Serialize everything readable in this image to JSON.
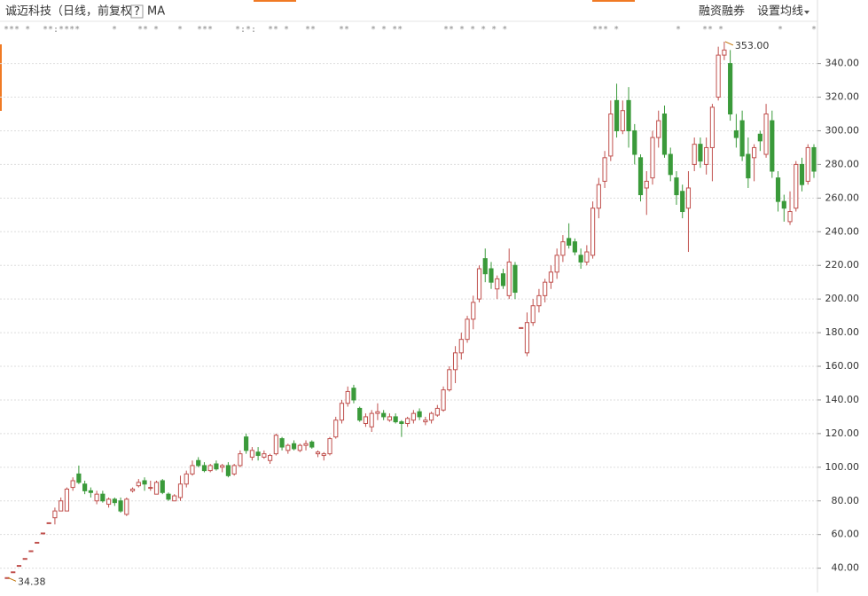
{
  "header": {
    "title": "诚迈科技",
    "mode": "（日线，前复权）",
    "help": "?",
    "indicator": "MA",
    "margin": "融资融券",
    "settings": "设置均线"
  },
  "markers": [
    "*** *",
    "**:****",
    "*",
    "** *",
    "*",
    "***",
    "*:*:",
    "** *",
    "**",
    "**",
    "* * **",
    "** * * * * *",
    "*** *",
    "** *",
    "*",
    "*",
    "*"
  ],
  "chart_data": {
    "type": "candlestick",
    "ylim": [
      34,
      353.5
    ],
    "yticks": [
      {
        "value": 40,
        "label": "40.00"
      },
      {
        "value": 60,
        "label": "60.00"
      },
      {
        "value": 80,
        "label": "80.00"
      },
      {
        "value": 100,
        "label": "100.00"
      },
      {
        "value": 120,
        "label": "120.00"
      },
      {
        "value": 140,
        "label": "140.00"
      },
      {
        "value": 160,
        "label": "160.00"
      },
      {
        "value": 180,
        "label": "180.00"
      },
      {
        "value": 200,
        "label": "200.00"
      },
      {
        "value": 220,
        "label": "220.00"
      },
      {
        "value": 240,
        "label": "240.00"
      },
      {
        "value": 260,
        "label": "260.00"
      },
      {
        "value": 280,
        "label": "280.00"
      },
      {
        "value": 300,
        "label": "300.00"
      },
      {
        "value": 320,
        "label": "320.00"
      },
      {
        "value": 340,
        "label": "340.00"
      }
    ],
    "grid": true,
    "up_color": "#c0504d",
    "down_color": "#3a9a3a",
    "annotations": [
      {
        "index": 120,
        "value": 353,
        "label": "353.00"
      },
      {
        "index": 0,
        "value": 34.38,
        "label": "34.38"
      }
    ],
    "candles": [
      [
        34.38,
        34.38,
        34.38,
        34.38
      ],
      [
        37.82,
        37.82,
        37.82,
        37.82
      ],
      [
        41.6,
        41.6,
        41.6,
        41.6
      ],
      [
        45.76,
        45.76,
        45.76,
        45.76
      ],
      [
        50.34,
        50.34,
        50.34,
        50.34
      ],
      [
        55.37,
        55.37,
        55.37,
        55.37
      ],
      [
        60.91,
        60.91,
        60.91,
        60.91
      ],
      [
        67,
        67,
        67,
        67
      ],
      [
        70,
        76,
        66,
        74
      ],
      [
        74,
        82,
        74,
        80
      ],
      [
        74,
        88,
        74,
        87
      ],
      [
        88,
        94,
        86,
        92
      ],
      [
        96,
        101,
        90,
        91
      ],
      [
        90,
        92,
        84,
        86
      ],
      [
        86,
        88,
        82,
        85
      ],
      [
        80,
        86,
        78,
        84
      ],
      [
        84,
        86,
        79,
        80
      ],
      [
        78,
        82,
        76,
        81
      ],
      [
        81,
        82,
        77,
        79
      ],
      [
        80,
        82,
        73,
        74
      ],
      [
        72,
        82,
        71,
        81
      ],
      [
        86,
        88,
        85,
        87
      ],
      [
        89,
        93,
        88,
        91
      ],
      [
        92,
        94,
        86,
        90
      ],
      [
        88,
        92,
        86,
        88
      ],
      [
        84,
        92,
        84,
        91
      ],
      [
        92,
        93,
        84,
        85
      ],
      [
        84,
        85,
        80,
        81
      ],
      [
        80,
        84,
        80,
        83
      ],
      [
        82,
        95,
        80,
        90
      ],
      [
        90,
        98,
        88,
        96
      ],
      [
        96,
        104,
        95,
        101
      ],
      [
        104,
        106,
        100,
        101
      ],
      [
        101,
        103,
        97,
        98
      ],
      [
        98,
        102,
        97,
        101
      ],
      [
        102,
        104,
        98,
        99
      ],
      [
        100,
        102,
        97,
        101
      ],
      [
        101,
        103,
        94,
        95
      ],
      [
        96,
        102,
        95,
        101
      ],
      [
        101,
        110,
        100,
        108
      ],
      [
        118,
        120,
        108,
        110
      ],
      [
        106,
        112,
        104,
        110
      ],
      [
        109,
        112,
        104,
        107
      ],
      [
        106,
        110,
        105,
        108
      ],
      [
        104,
        108,
        102,
        107
      ],
      [
        108,
        120,
        107,
        119
      ],
      [
        117,
        118,
        110,
        112
      ],
      [
        110,
        114,
        108,
        113
      ],
      [
        114,
        116,
        110,
        111
      ],
      [
        110,
        114,
        109,
        113
      ],
      [
        113,
        116,
        110,
        114
      ],
      [
        115,
        116,
        111,
        112
      ],
      [
        108,
        110,
        106,
        109
      ],
      [
        107,
        109,
        104,
        108
      ],
      [
        108,
        118,
        107,
        117
      ],
      [
        118,
        130,
        117,
        128
      ],
      [
        128,
        140,
        126,
        138
      ],
      [
        138,
        148,
        136,
        145
      ],
      [
        147,
        149,
        138,
        140
      ],
      [
        135,
        136,
        127,
        128
      ],
      [
        126,
        132,
        124,
        130
      ],
      [
        124,
        134,
        121,
        132
      ],
      [
        132,
        138,
        128,
        133
      ],
      [
        132,
        134,
        128,
        130
      ],
      [
        128,
        132,
        127,
        130
      ],
      [
        130,
        132,
        126,
        127
      ],
      [
        127,
        128,
        118,
        126
      ],
      [
        126,
        130,
        124,
        129
      ],
      [
        128,
        134,
        126,
        132
      ],
      [
        133,
        135,
        128,
        130
      ],
      [
        127,
        130,
        125,
        128
      ],
      [
        128,
        133,
        126,
        132
      ],
      [
        131,
        137,
        130,
        135
      ],
      [
        134,
        148,
        133,
        146
      ],
      [
        146,
        160,
        145,
        158
      ],
      [
        158,
        172,
        150,
        168
      ],
      [
        168,
        180,
        164,
        176
      ],
      [
        176,
        190,
        174,
        188
      ],
      [
        188,
        202,
        182,
        198
      ],
      [
        200,
        220,
        198,
        218
      ],
      [
        224,
        230,
        210,
        215
      ],
      [
        218,
        222,
        206,
        210
      ],
      [
        206,
        214,
        200,
        212
      ],
      [
        215,
        218,
        206,
        208
      ],
      [
        202,
        230,
        200,
        222
      ],
      [
        220,
        222,
        200,
        204
      ],
      [
        183,
        183,
        183,
        183
      ],
      [
        168,
        192,
        166,
        186
      ],
      [
        186,
        200,
        184,
        196
      ],
      [
        196,
        206,
        192,
        202
      ],
      [
        202,
        212,
        198,
        210
      ],
      [
        210,
        220,
        206,
        216
      ],
      [
        216,
        230,
        212,
        226
      ],
      [
        226,
        238,
        222,
        234
      ],
      [
        236,
        245,
        230,
        232
      ],
      [
        234,
        236,
        226,
        228
      ],
      [
        226,
        230,
        218,
        222
      ],
      [
        222,
        232,
        220,
        228
      ],
      [
        226,
        258,
        224,
        254
      ],
      [
        254,
        272,
        248,
        268
      ],
      [
        270,
        288,
        266,
        284
      ],
      [
        285,
        318,
        282,
        310
      ],
      [
        318,
        328,
        296,
        300
      ],
      [
        300,
        318,
        298,
        312
      ],
      [
        318,
        326,
        290,
        300
      ],
      [
        300,
        304,
        280,
        286
      ],
      [
        284,
        286,
        258,
        262
      ],
      [
        266,
        276,
        250,
        270
      ],
      [
        272,
        300,
        268,
        296
      ],
      [
        296,
        312,
        290,
        306
      ],
      [
        310,
        315,
        284,
        286
      ],
      [
        286,
        290,
        270,
        274
      ],
      [
        272,
        276,
        256,
        262
      ],
      [
        264,
        268,
        248,
        252
      ],
      [
        254,
        276,
        228,
        266
      ],
      [
        280,
        296,
        276,
        292
      ],
      [
        292,
        296,
        278,
        282
      ],
      [
        280,
        296,
        274,
        290
      ],
      [
        290,
        316,
        270,
        314
      ],
      [
        320,
        350,
        318,
        345
      ],
      [
        345,
        353,
        342,
        348
      ],
      [
        340,
        348,
        306,
        310
      ],
      [
        300,
        310,
        290,
        296
      ],
      [
        306,
        312,
        282,
        285
      ],
      [
        286,
        296,
        266,
        272
      ],
      [
        284,
        292,
        270,
        290
      ],
      [
        298,
        300,
        288,
        294
      ],
      [
        286,
        316,
        284,
        310
      ],
      [
        306,
        312,
        272,
        276
      ],
      [
        272,
        276,
        252,
        258
      ],
      [
        258,
        262,
        246,
        254
      ],
      [
        246,
        264,
        244,
        252
      ],
      [
        254,
        282,
        252,
        280
      ],
      [
        280,
        284,
        264,
        268
      ],
      [
        270,
        292,
        268,
        290
      ],
      [
        290,
        292,
        272,
        276
      ]
    ]
  }
}
